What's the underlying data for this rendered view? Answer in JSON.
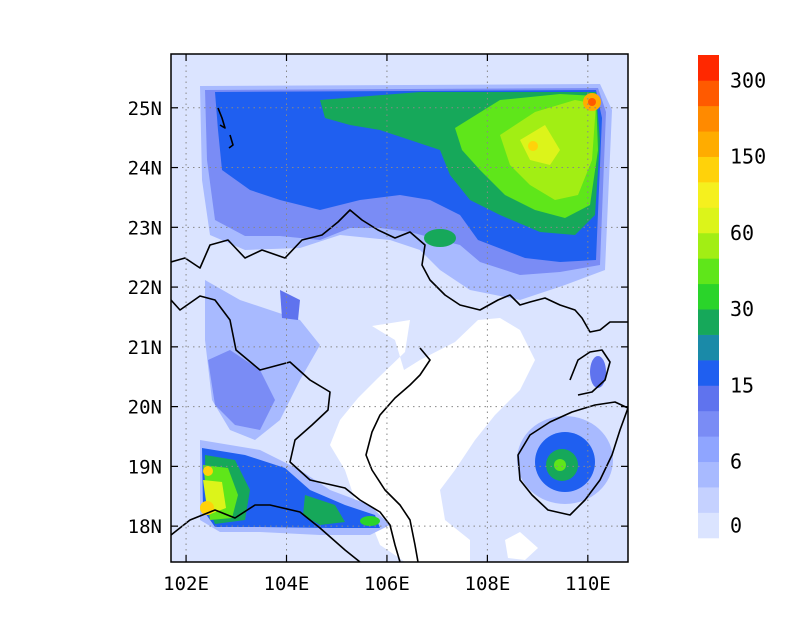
{
  "map": {
    "lon_range": [
      101.7,
      110.8
    ],
    "lat_range": [
      17.4,
      25.9
    ],
    "lon_ticks": [
      {
        "value": 102,
        "label": "102E"
      },
      {
        "value": 104,
        "label": "104E"
      },
      {
        "value": 106,
        "label": "106E"
      },
      {
        "value": 108,
        "label": "108E"
      },
      {
        "value": 110,
        "label": "110E"
      }
    ],
    "lat_ticks": [
      {
        "value": 18,
        "label": "18N"
      },
      {
        "value": 19,
        "label": "19N"
      },
      {
        "value": 20,
        "label": "20N"
      },
      {
        "value": 21,
        "label": "21N"
      },
      {
        "value": 22,
        "label": "22N"
      },
      {
        "value": 23,
        "label": "23N"
      },
      {
        "value": 24,
        "label": "24N"
      },
      {
        "value": 25,
        "label": "25N"
      }
    ],
    "grid": true,
    "background_color": "#dbe4ff"
  },
  "colorbar": {
    "colors": [
      "#dbe4ff",
      "#c5d1ff",
      "#a8baff",
      "#8fa5ff",
      "#7a8cf5",
      "#5f73ee",
      "#1f5ff0",
      "#1a8aa8",
      "#16a85a",
      "#2ad42a",
      "#5fe61a",
      "#a2ee14",
      "#dcf41a",
      "#f5f01e",
      "#ffd20a",
      "#ffac00",
      "#ff8a00",
      "#ff5a00",
      "#ff2800"
    ],
    "labels": [
      {
        "level": 0,
        "text": "0"
      },
      {
        "level": 3,
        "text": "6"
      },
      {
        "level": 6,
        "text": "15"
      },
      {
        "level": 9,
        "text": "30"
      },
      {
        "level": 12,
        "text": "60"
      },
      {
        "level": 15,
        "text": "150"
      },
      {
        "level": 18,
        "text": "300"
      }
    ]
  },
  "chart_data": {
    "type": "heatmap",
    "title": "",
    "xlabel": "",
    "ylabel": "",
    "xlim": [
      101.7,
      110.8
    ],
    "ylim": [
      17.4,
      25.9
    ],
    "legend": "colorbar-right",
    "hotspots": [
      {
        "lon": 110.1,
        "lat": 25.1,
        "value": 280
      },
      {
        "lon": 109.0,
        "lat": 24.4,
        "value": 120
      },
      {
        "lon": 108.3,
        "lat": 24.0,
        "value": 60
      },
      {
        "lon": 107.2,
        "lat": 25.0,
        "value": 40
      },
      {
        "lon": 102.4,
        "lat": 18.3,
        "value": 150
      },
      {
        "lon": 102.4,
        "lat": 18.9,
        "value": 120
      },
      {
        "lon": 104.7,
        "lat": 18.1,
        "value": 40
      },
      {
        "lon": 105.7,
        "lat": 18.1,
        "value": 40
      },
      {
        "lon": 109.6,
        "lat": 19.0,
        "value": 40
      },
      {
        "lon": 106.9,
        "lat": 22.8,
        "value": 40
      },
      {
        "lon": 103.9,
        "lat": 22.1,
        "value": 12
      },
      {
        "lon": 110.2,
        "lat": 20.6,
        "value": 12
      }
    ]
  }
}
